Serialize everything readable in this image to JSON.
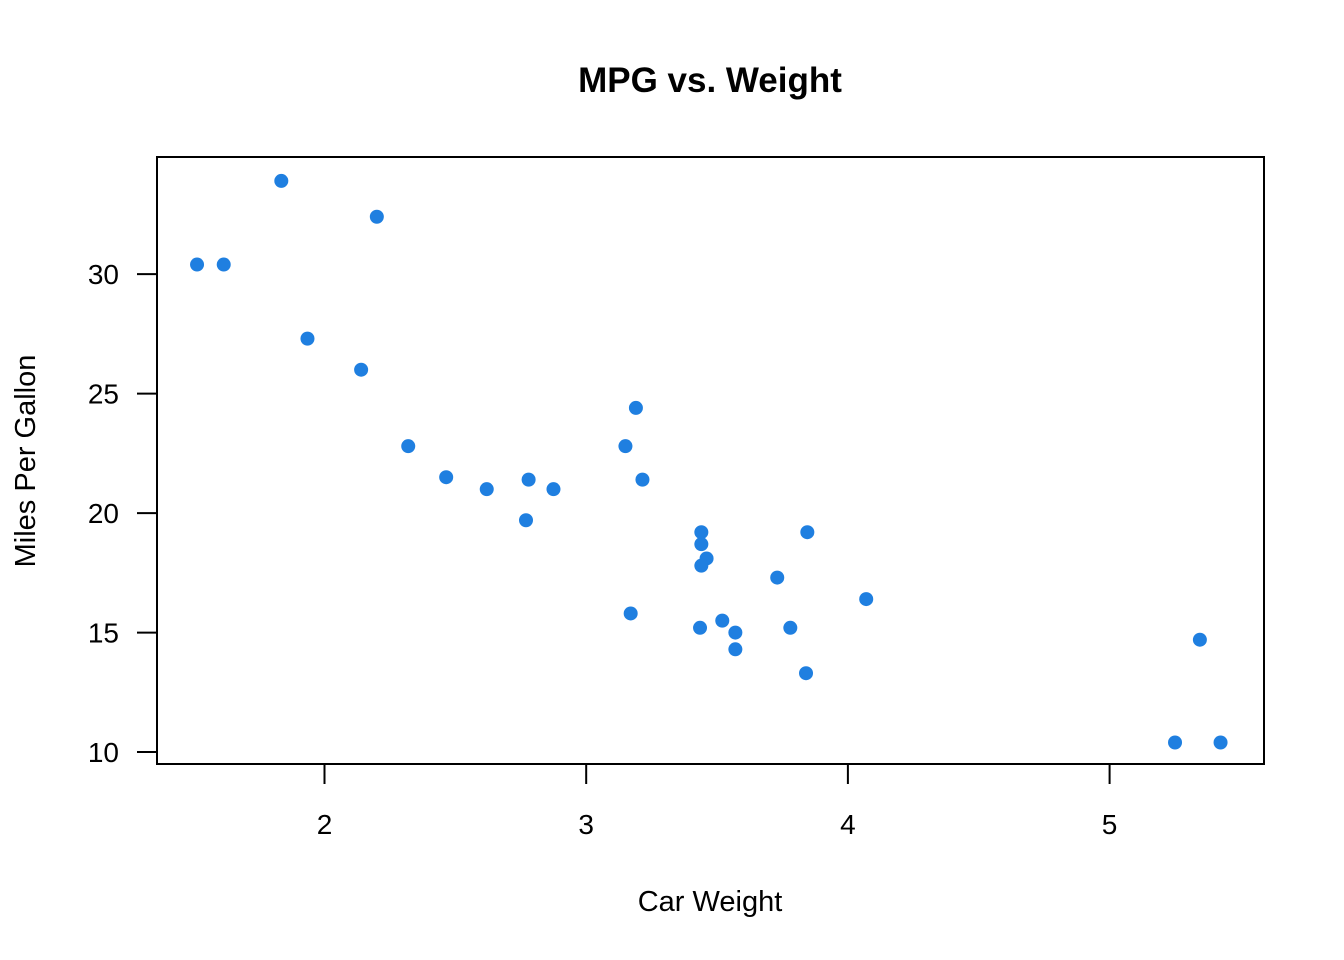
{
  "colors": {
    "point": "#1f7fe0",
    "axis": "#000000",
    "background": "#ffffff"
  },
  "chart_data": {
    "type": "scatter",
    "title": "MPG vs. Weight",
    "xlabel": "Car Weight",
    "ylabel": "Miles Per Gallon",
    "xlim": [
      1.36,
      5.59
    ],
    "ylim": [
      9.5,
      34.9
    ],
    "xticks": [
      2,
      3,
      4,
      5
    ],
    "yticks": [
      10,
      15,
      20,
      25,
      30
    ],
    "xtick_labels": [
      "2",
      "3",
      "4",
      "5"
    ],
    "ytick_labels": [
      "10",
      "15",
      "20",
      "25",
      "30"
    ],
    "grid": false,
    "legend": "none",
    "points": [
      {
        "x": 2.62,
        "y": 21.0
      },
      {
        "x": 2.875,
        "y": 21.0
      },
      {
        "x": 2.32,
        "y": 22.8
      },
      {
        "x": 3.215,
        "y": 21.4
      },
      {
        "x": 3.44,
        "y": 18.7
      },
      {
        "x": 3.46,
        "y": 18.1
      },
      {
        "x": 3.57,
        "y": 14.3
      },
      {
        "x": 3.19,
        "y": 24.4
      },
      {
        "x": 3.15,
        "y": 22.8
      },
      {
        "x": 3.44,
        "y": 19.2
      },
      {
        "x": 3.44,
        "y": 17.8
      },
      {
        "x": 4.07,
        "y": 16.4
      },
      {
        "x": 3.73,
        "y": 17.3
      },
      {
        "x": 3.78,
        "y": 15.2
      },
      {
        "x": 5.25,
        "y": 10.4
      },
      {
        "x": 5.424,
        "y": 10.4
      },
      {
        "x": 5.345,
        "y": 14.7
      },
      {
        "x": 2.2,
        "y": 32.4
      },
      {
        "x": 1.615,
        "y": 30.4
      },
      {
        "x": 1.835,
        "y": 33.9
      },
      {
        "x": 2.465,
        "y": 21.5
      },
      {
        "x": 3.52,
        "y": 15.5
      },
      {
        "x": 3.435,
        "y": 15.2
      },
      {
        "x": 3.84,
        "y": 13.3
      },
      {
        "x": 3.845,
        "y": 19.2
      },
      {
        "x": 1.935,
        "y": 27.3
      },
      {
        "x": 2.14,
        "y": 26.0
      },
      {
        "x": 1.513,
        "y": 30.4
      },
      {
        "x": 3.17,
        "y": 15.8
      },
      {
        "x": 2.77,
        "y": 19.7
      },
      {
        "x": 3.57,
        "y": 15.0
      },
      {
        "x": 2.78,
        "y": 21.4
      }
    ]
  }
}
